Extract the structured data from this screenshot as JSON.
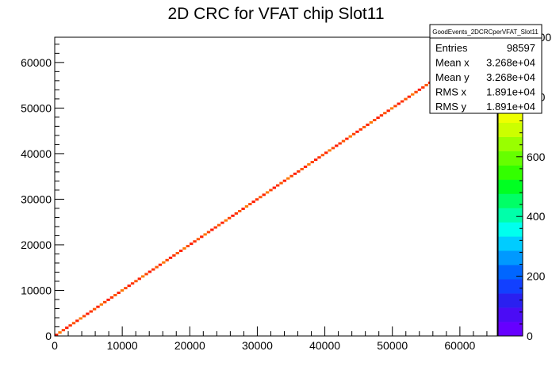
{
  "chart_data": {
    "type": "heatmap",
    "title": "2D CRC for VFAT chip Slot11",
    "xlabel": "",
    "ylabel": "",
    "xlim": [
      0,
      65536
    ],
    "ylim": [
      0,
      65536
    ],
    "zlim": [
      0,
      1000
    ],
    "x_ticks": [
      "0",
      "10000",
      "20000",
      "30000",
      "40000",
      "50000",
      "60000"
    ],
    "x_tick_values": [
      0,
      10000,
      20000,
      30000,
      40000,
      50000,
      60000
    ],
    "y_ticks": [
      "0",
      "10000",
      "20000",
      "30000",
      "40000",
      "50000",
      "60000"
    ],
    "y_tick_values": [
      0,
      10000,
      20000,
      30000,
      40000,
      50000,
      60000
    ],
    "z_ticks": [
      "0",
      "200",
      "400",
      "600",
      "800",
      "1000"
    ],
    "z_tick_values": [
      0,
      200,
      400,
      600,
      800,
      1000
    ],
    "diagonal": {
      "x_start": 0,
      "x_end": 65536,
      "bins": 128,
      "typical_content_range": [
        700,
        880
      ]
    },
    "colorscale": [
      "#6600ff",
      "#4b0cf5",
      "#2a20f0",
      "#1240ff",
      "#0066ff",
      "#0099ff",
      "#00ccff",
      "#00ffee",
      "#00ffaa",
      "#00ff66",
      "#00ff22",
      "#33ff00",
      "#66ff00",
      "#99ff00",
      "#ccff00",
      "#eeff00",
      "#ffdd00",
      "#ffaa00",
      "#ff7700",
      "#ff4400",
      "#ff1100"
    ],
    "stats": {
      "title": "GoodEvents_2DCRCperVFAT_Slot11",
      "rows": [
        {
          "label": "Entries",
          "value": "98597"
        },
        {
          "label": "Mean x",
          "value": "3.268e+04"
        },
        {
          "label": "Mean y",
          "value": "3.268e+04"
        },
        {
          "label": "RMS x",
          "value": "1.891e+04"
        },
        {
          "label": "RMS y",
          "value": "1.891e+04"
        }
      ]
    }
  }
}
